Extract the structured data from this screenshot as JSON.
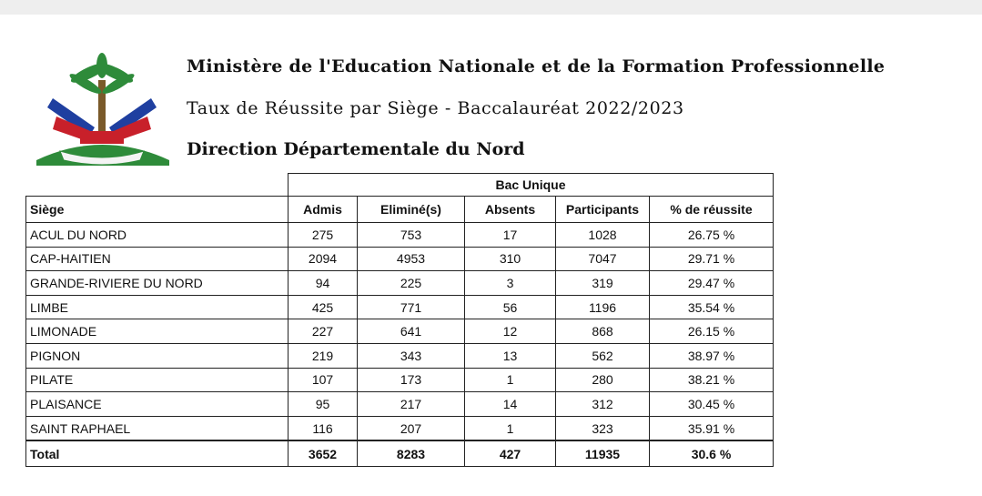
{
  "header": {
    "line1": "Ministère de l'Education Nationale et de la Formation Professionnelle",
    "line2": "Taux de Réussite par Siège - Baccalauréat 2022/2023",
    "line3": "Direction Départementale du Nord"
  },
  "table": {
    "group_header": "Bac Unique",
    "columns": [
      "Siège",
      "Admis",
      "Eliminé(s)",
      "Absents",
      "Participants",
      "% de réussite"
    ],
    "rows": [
      [
        "ACUL DU NORD",
        275,
        753,
        17,
        1028,
        "26.75 %"
      ],
      [
        "CAP-HAITIEN",
        2094,
        4953,
        310,
        7047,
        "29.71 %"
      ],
      [
        "GRANDE-RIVIERE DU NORD",
        94,
        225,
        3,
        319,
        "29.47 %"
      ],
      [
        "LIMBE",
        425,
        771,
        56,
        1196,
        "35.54 %"
      ],
      [
        "LIMONADE",
        227,
        641,
        12,
        868,
        "26.15 %"
      ],
      [
        "PIGNON",
        219,
        343,
        13,
        562,
        "38.97 %"
      ],
      [
        "PILATE",
        107,
        173,
        1,
        280,
        "38.21 %"
      ],
      [
        "PLAISANCE",
        95,
        217,
        14,
        312,
        "30.45 %"
      ],
      [
        "SAINT RAPHAEL",
        116,
        207,
        1,
        323,
        "35.91 %"
      ]
    ],
    "total": [
      "Total",
      3652,
      8283,
      427,
      11935,
      "30.6 %"
    ]
  }
}
